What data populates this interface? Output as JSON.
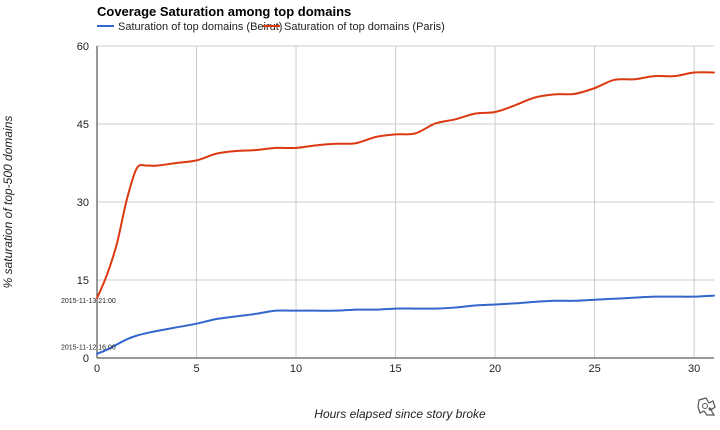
{
  "chart_data": {
    "type": "line",
    "title": "Coverage Saturation among top domains",
    "xlabel": "Hours elapsed since story broke",
    "ylabel": "% saturation of top-500 domains",
    "xlim": [
      0,
      31
    ],
    "ylim": [
      0,
      60
    ],
    "x_ticks": [
      0,
      5,
      10,
      15,
      20,
      25,
      30
    ],
    "y_ticks": [
      0,
      15,
      30,
      45,
      60
    ],
    "grid": true,
    "legend_position": "top-left",
    "annotations": [
      {
        "text": "2015-11-13 21:00",
        "x": 0,
        "y": 11
      },
      {
        "text": "2015-11-12 16:00",
        "x": 0,
        "y": 2
      }
    ],
    "series": [
      {
        "name": "Saturation of top domains (Beirut)",
        "color": "#3366cc",
        "x": [
          0,
          0.5,
          1,
          1.5,
          2,
          2.5,
          3,
          4,
          5,
          6,
          7,
          8,
          9,
          10,
          11,
          12,
          13,
          14,
          15,
          16,
          17,
          18,
          19,
          20,
          21,
          22,
          23,
          24,
          25,
          26,
          27,
          28,
          29,
          30,
          31
        ],
        "values": [
          0.8,
          1.6,
          2.6,
          3.6,
          4.3,
          4.8,
          5.2,
          5.9,
          6.6,
          7.5,
          8.0,
          8.5,
          9.1,
          9.1,
          9.1,
          9.1,
          9.3,
          9.3,
          9.5,
          9.5,
          9.5,
          9.7,
          10.1,
          10.3,
          10.5,
          10.8,
          11.0,
          11.0,
          11.2,
          11.4,
          11.6,
          11.8,
          11.8,
          11.8,
          12.0
        ]
      },
      {
        "name": "Saturation of top domains (Paris)",
        "color": "#dc3912",
        "x": [
          0,
          0.5,
          1,
          1.5,
          2,
          2.5,
          3,
          4,
          5,
          6,
          7,
          8,
          9,
          10,
          11,
          12,
          13,
          14,
          15,
          16,
          17,
          18,
          19,
          20,
          21,
          22,
          23,
          24,
          25,
          26,
          27,
          28,
          29,
          30,
          31
        ],
        "values": [
          11.5,
          16.0,
          22.0,
          30.5,
          36.5,
          37.0,
          37.0,
          37.5,
          38.0,
          39.3,
          39.8,
          40.0,
          40.4,
          40.4,
          40.9,
          41.2,
          41.3,
          42.5,
          43.0,
          43.2,
          45.1,
          45.9,
          47.0,
          47.3,
          48.6,
          50.1,
          50.7,
          50.8,
          51.9,
          53.5,
          53.6,
          54.2,
          54.2,
          54.9,
          54.9
        ]
      }
    ]
  }
}
